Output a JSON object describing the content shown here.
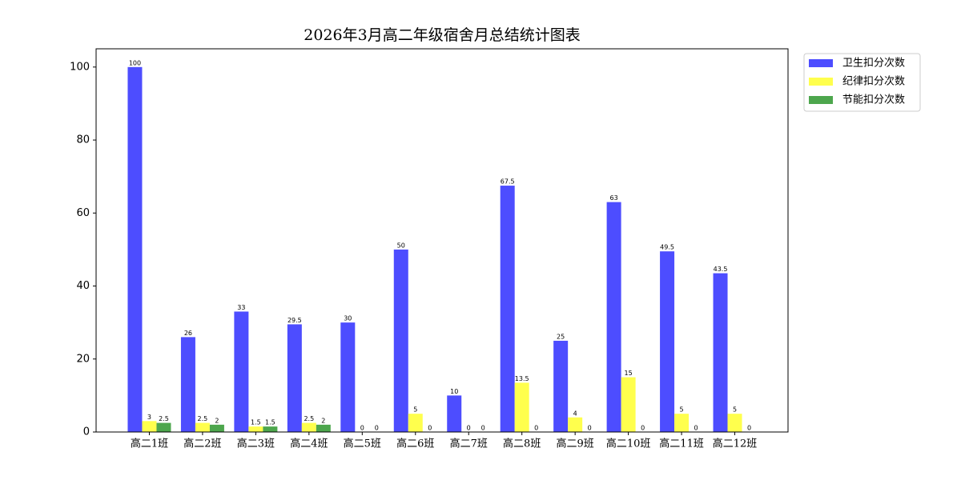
{
  "chart_data": {
    "type": "bar",
    "title": "2026年3月高二年级宿舍月总结统计图表",
    "categories": [
      "高二1班",
      "高二2班",
      "高二3班",
      "高二4班",
      "高二5班",
      "高二6班",
      "高二7班",
      "高二8班",
      "高二9班",
      "高二10班",
      "高二11班",
      "高二12班"
    ],
    "series": [
      {
        "name": "卫生扣分次数",
        "color": "#4d4dff",
        "values": [
          100,
          26,
          33,
          29.5,
          30,
          50,
          10,
          67.5,
          25,
          63,
          49.5,
          43.5
        ]
      },
      {
        "name": "纪律扣分次数",
        "color": "#ffff4d",
        "values": [
          3,
          2.5,
          1.5,
          2.5,
          0,
          5,
          0,
          13.5,
          4,
          15,
          5,
          5
        ]
      },
      {
        "name": "节能扣分次数",
        "color": "#4da64d",
        "values": [
          2.5,
          2,
          1.5,
          2,
          0,
          0,
          0,
          0,
          0,
          0,
          0,
          0
        ]
      }
    ],
    "ylim": [
      0,
      105
    ],
    "yticks": [
      0,
      20,
      40,
      60,
      80,
      100
    ],
    "legend": "outside-upper-right"
  }
}
